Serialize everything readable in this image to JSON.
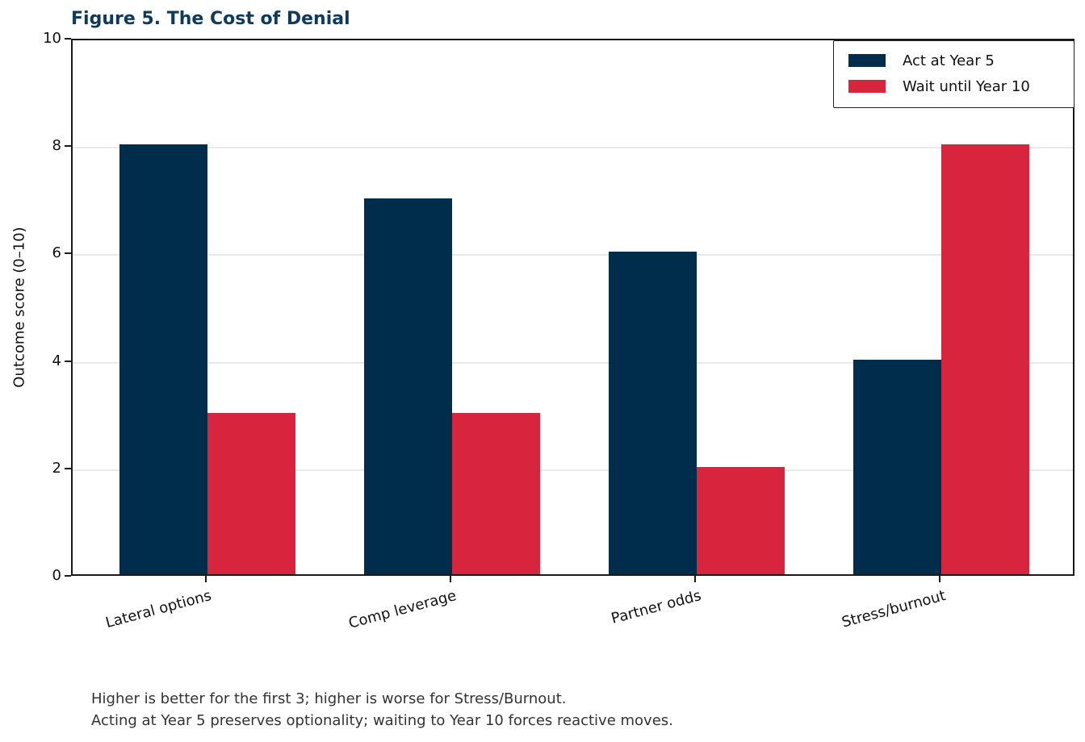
{
  "figure": {
    "title_color": "#0f3a5b",
    "background": "#ffffff"
  },
  "chart_data": {
    "type": "bar",
    "title": "Figure 5. The Cost of Denial",
    "categories": [
      "Lateral options",
      "Comp leverage",
      "Partner odds",
      "Stress/burnout"
    ],
    "series": [
      {
        "name": "Act at Year 5",
        "color": "#002d4b",
        "values": [
          8,
          7,
          6,
          4
        ]
      },
      {
        "name": "Wait until Year 10",
        "color": "#d8253d",
        "values": [
          3,
          3,
          2,
          8
        ]
      }
    ],
    "xlabel": "",
    "ylabel": "Outcome score (0–10)",
    "ylim": [
      0,
      10
    ],
    "yticks": [
      0,
      2,
      4,
      6,
      8,
      10
    ],
    "grid": true,
    "gridline_color": "#e9e9e9",
    "legend_position": "upper right",
    "xtick_rotation_deg": 15
  },
  "footnote": {
    "lines": [
      "Higher is better for the first 3; higher is worse for Stress/Burnout.",
      "Acting at Year 5 preserves optionality; waiting to Year 10 forces reactive moves."
    ]
  }
}
